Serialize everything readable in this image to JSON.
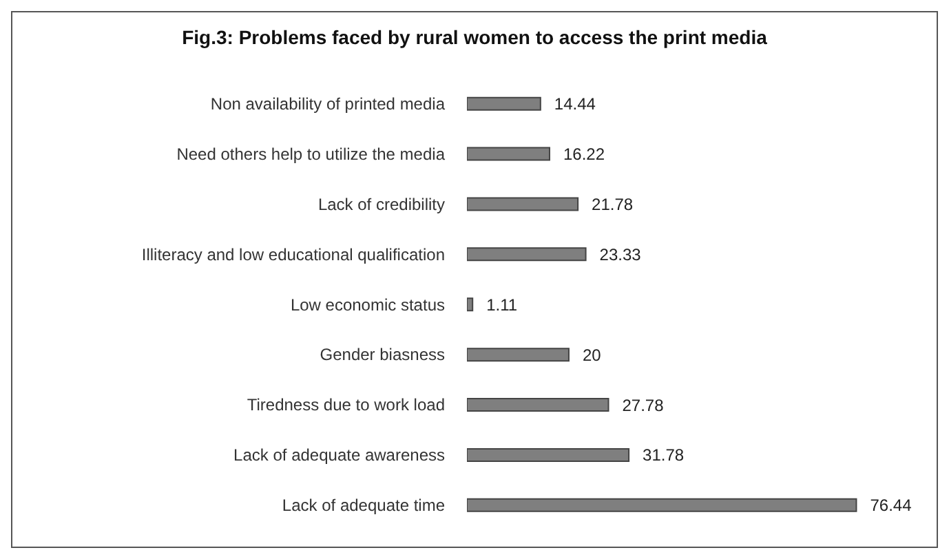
{
  "chart_data": {
    "type": "bar",
    "orientation": "horizontal",
    "title": "Fig.3: Problems faced by rural women to access the print media",
    "categories": [
      "Non availability of printed media",
      "Need others help to utilize the media",
      "Lack of credibility",
      "Illiteracy and low educational qualification",
      "Low economic status",
      "Gender biasness",
      "Tiredness due to work load",
      "Lack of adequate awareness",
      "Lack of adequate time"
    ],
    "values": [
      14.44,
      16.22,
      21.78,
      23.33,
      1.11,
      20,
      27.78,
      31.78,
      76.44
    ],
    "color": "#7f7f7f",
    "data_labels": true
  }
}
